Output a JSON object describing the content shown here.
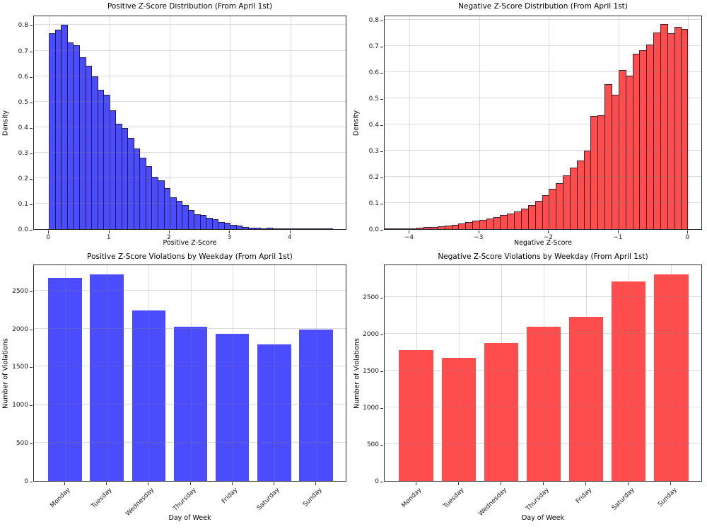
{
  "figure": {
    "background": "#ffffff",
    "accent_blue": "#4c4cff",
    "accent_red": "#ff4c4c"
  },
  "chart_data": [
    {
      "id": "pos_dist",
      "type": "bar",
      "subtype": "histogram",
      "title": "Positive Z-Score Distribution (From April 1st)",
      "xlabel": "Positive Z-Score",
      "ylabel": "Density",
      "bar_color": "#4c4cff",
      "bar_edge_color": "#1a1a33",
      "grid": true,
      "legend": "none",
      "bin_start": 0.0,
      "bin_width": 0.1,
      "densities": [
        0.768,
        0.783,
        0.8,
        0.732,
        0.72,
        0.675,
        0.64,
        0.6,
        0.545,
        0.527,
        0.465,
        0.414,
        0.396,
        0.358,
        0.316,
        0.28,
        0.247,
        0.204,
        0.19,
        0.16,
        0.126,
        0.112,
        0.094,
        0.075,
        0.057,
        0.055,
        0.045,
        0.039,
        0.028,
        0.024,
        0.016,
        0.013,
        0.009,
        0.006,
        0.005,
        0.004,
        0.005,
        0.003,
        0.002,
        0.002,
        0.002,
        0.001,
        0.001,
        0.001,
        0.001,
        0.001,
        0.001
      ],
      "xlim": [
        -0.25,
        4.94
      ],
      "ylim": [
        0,
        0.84
      ],
      "xticks": [
        0,
        1,
        2,
        3,
        4
      ],
      "xtick_labels": [
        "0",
        "1",
        "2",
        "3",
        "4"
      ],
      "yticks": [
        0,
        0.1,
        0.2,
        0.3,
        0.4,
        0.5,
        0.6,
        0.7,
        0.8
      ],
      "ytick_labels": [
        "0.0",
        "0.1",
        "0.2",
        "0.3",
        "0.4",
        "0.5",
        "0.6",
        "0.7",
        "0.8"
      ]
    },
    {
      "id": "neg_dist",
      "type": "bar",
      "subtype": "histogram",
      "title": "Negative Z-Score Distribution (From April 1st)",
      "xlabel": "Negative Z-Score",
      "ylabel": "Density",
      "bar_color": "#ff4c4c",
      "bar_edge_color": "#331414",
      "grid": true,
      "legend": "none",
      "bin_start": -4.4,
      "bin_width": 0.1,
      "densities": [
        0.002,
        0.002,
        0.003,
        0.003,
        0.004,
        0.005,
        0.007,
        0.009,
        0.011,
        0.014,
        0.017,
        0.021,
        0.026,
        0.032,
        0.036,
        0.041,
        0.047,
        0.053,
        0.06,
        0.068,
        0.078,
        0.092,
        0.108,
        0.13,
        0.155,
        0.175,
        0.205,
        0.235,
        0.263,
        0.3,
        0.432,
        0.435,
        0.554,
        0.515,
        0.61,
        0.587,
        0.672,
        0.686,
        0.706,
        0.752,
        0.786,
        0.75,
        0.774,
        0.766
      ],
      "xlim": [
        -4.36,
        0.21
      ],
      "ylim": [
        0,
        0.82
      ],
      "xticks": [
        -4,
        -3,
        -2,
        -1,
        0
      ],
      "xtick_labels": [
        "−4",
        "−3",
        "−2",
        "−1",
        "0"
      ],
      "yticks": [
        0,
        0.1,
        0.2,
        0.3,
        0.4,
        0.5,
        0.6,
        0.7,
        0.8
      ],
      "ytick_labels": [
        "0.0",
        "0.1",
        "0.2",
        "0.3",
        "0.4",
        "0.5",
        "0.6",
        "0.7",
        "0.8"
      ]
    },
    {
      "id": "pos_weekday",
      "type": "bar",
      "subtype": "category",
      "title": "Positive Z-Score Violations by Weekday (From April 1st)",
      "xlabel": "Day of Week",
      "ylabel": "Number of Violations",
      "bar_color": "#4c4cff",
      "grid": true,
      "legend": "none",
      "categories": [
        "Monday",
        "Tuesday",
        "Wednesday",
        "Thursday",
        "Friday",
        "Saturday",
        "Sunday"
      ],
      "values": [
        2667,
        2714,
        2233,
        2026,
        1933,
        1791,
        1986
      ],
      "ylim": [
        0,
        2850
      ],
      "yticks": [
        0,
        500,
        1000,
        1500,
        2000,
        2500
      ],
      "ytick_labels": [
        "0",
        "500",
        "1000",
        "1500",
        "2000",
        "2500"
      ]
    },
    {
      "id": "neg_weekday",
      "type": "bar",
      "subtype": "category",
      "title": "Negative Z-Score Violations by Weekday (From April 1st)",
      "xlabel": "Day of Week",
      "ylabel": "Number of Violations",
      "bar_color": "#ff4c4c",
      "grid": true,
      "legend": "none",
      "categories": [
        "Monday",
        "Tuesday",
        "Wednesday",
        "Thursday",
        "Friday",
        "Saturday",
        "Sunday"
      ],
      "values": [
        1780,
        1670,
        1878,
        2097,
        2232,
        2716,
        2813
      ],
      "ylim": [
        0,
        2954
      ],
      "yticks": [
        0,
        500,
        1000,
        1500,
        2000,
        2500
      ],
      "ytick_labels": [
        "0",
        "500",
        "1000",
        "1500",
        "2000",
        "2500"
      ]
    }
  ]
}
